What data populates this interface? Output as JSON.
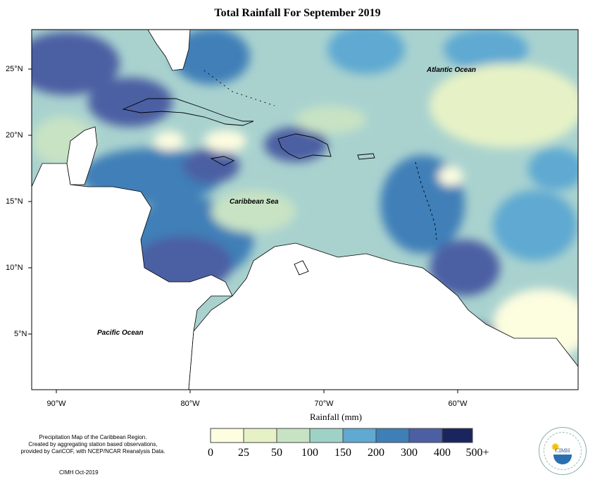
{
  "title": "Total Rainfall For September 2019",
  "lat_labels": [
    "25°N",
    "20°N",
    "15°N",
    "10°N",
    "5°N"
  ],
  "lon_labels": [
    "90°W",
    "80°W",
    "70°W",
    "60°W"
  ],
  "x_axis_title": "Rainfall (mm)",
  "oceans": {
    "atlantic": "Atlantic Ocean",
    "caribbean": "Caribbean Sea",
    "pacific": "Pacific Ocean"
  },
  "notes": {
    "description": "Precipitation Map of the Caribbean Region.\nCreated by aggregating station based observations,\nprovided by CariCOF, with NCEP/NCAR Reanalysis Data.",
    "credit": "CIMH Oct-2019"
  },
  "legend": {
    "labels": [
      "0",
      "25",
      "50",
      "100",
      "150",
      "200",
      "300",
      "400",
      "500+"
    ],
    "colors": [
      "#fdfde0",
      "#e6f2c6",
      "#c8e3c4",
      "#9fd2c6",
      "#5fa9d2",
      "#3f7fb8",
      "#4c5fa3",
      "#3c3f8a",
      "#1a2560"
    ]
  },
  "logo_text": "CIMH",
  "colors": {
    "land": "#ffffff",
    "map_bg": "#a9d2cf",
    "coast": "#000000"
  }
}
